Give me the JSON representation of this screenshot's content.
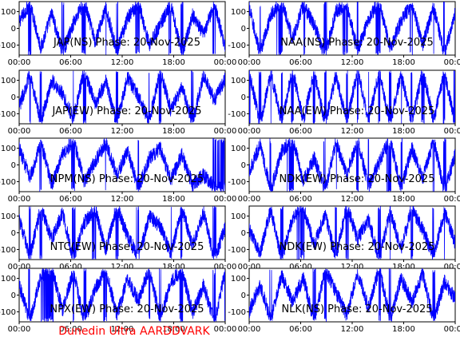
{
  "chart_data": [
    {
      "type": "line",
      "title": "JAP(NS) Phase: 20-Nov-2025",
      "x_ticks": [
        "00:00",
        "06:00",
        "12:00",
        "18:00",
        "00:00"
      ],
      "y_ticks": [
        100,
        0,
        -100
      ],
      "ylim": [
        -160,
        160
      ],
      "series_color": "#0000ff",
      "y_values": [
        40,
        150,
        -120,
        90,
        -150,
        30,
        160,
        -80,
        120,
        -140,
        60,
        155,
        -100,
        20,
        140,
        -160,
        80,
        -40,
        150,
        -120
      ]
    },
    {
      "type": "line",
      "title": "NAA(NS) Phase: 20-Nov-2025",
      "x_ticks": [
        "00:00",
        "06:00",
        "12:00",
        "18:00",
        "00:00"
      ],
      "y_ticks": [
        100,
        0,
        -100
      ],
      "ylim": [
        -160,
        160
      ],
      "series_color": "#0000ff",
      "y_values": [
        120,
        -150,
        80,
        160,
        -60,
        140,
        20,
        -160,
        100,
        150,
        -140,
        60,
        160,
        -120,
        40,
        150,
        -100,
        130,
        -150,
        90
      ]
    },
    {
      "type": "line",
      "title": "JAP(EW) Phase: 20-Nov-2025",
      "x_ticks": [
        "00:00",
        "06:00",
        "12:00",
        "18:00",
        "00:00"
      ],
      "y_ticks": [
        100,
        0,
        -100
      ],
      "ylim": [
        -160,
        160
      ],
      "series_color": "#0000ff",
      "y_values": [
        -60,
        140,
        -150,
        100,
        20,
        -130,
        160,
        -40,
        90,
        -160,
        120,
        0,
        -140,
        150,
        -80,
        60,
        -150,
        130,
        -20,
        110
      ]
    },
    {
      "type": "line",
      "title": "NAA(EW) Phase: 20-Nov-2025",
      "x_ticks": [
        "00:00",
        "06:00",
        "12:00",
        "18:00",
        "00:00"
      ],
      "y_ticks": [
        100,
        0,
        -100
      ],
      "ylim": [
        -160,
        160
      ],
      "series_color": "#0000ff",
      "y_values": [
        150,
        -160,
        140,
        -150,
        160,
        -140,
        150,
        -160,
        130,
        -150,
        160,
        -140,
        150,
        -160,
        140,
        -150,
        160,
        -140,
        150,
        -160
      ]
    },
    {
      "type": "line",
      "title": "NPM(NS) Phase: 20-Nov-2025",
      "x_ticks": [
        "00:00",
        "06:00",
        "12:00",
        "18:00",
        "00:00"
      ],
      "y_ticks": [
        100,
        0,
        -100
      ],
      "ylim": [
        -160,
        160
      ],
      "series_color": "#0000ff",
      "y_values": [
        100,
        -80,
        140,
        -120,
        60,
        150,
        -100,
        20,
        130,
        -60,
        80,
        -140,
        40,
        100,
        -90,
        60,
        -120,
        -60,
        -130,
        -150
      ]
    },
    {
      "type": "line",
      "title": "NDK(EW) Phase: 20-Nov-2025",
      "x_ticks": [
        "00:00",
        "06:00",
        "12:00",
        "18:00",
        "00:00"
      ],
      "y_ticks": [
        100,
        0,
        -100
      ],
      "ylim": [
        -160,
        160
      ],
      "series_color": "#0000ff",
      "y_values": [
        -40,
        120,
        -150,
        80,
        160,
        -100,
        40,
        -160,
        140,
        -60,
        150,
        -130,
        20,
        160,
        -150,
        100,
        -80,
        150,
        -160,
        60
      ]
    },
    {
      "type": "line",
      "title": "NTC(EW) Phase: 20-Nov-2025",
      "x_ticks": [
        "00:00",
        "06:00",
        "12:00",
        "18:00",
        "00:00"
      ],
      "y_ticks": [
        100,
        0,
        -100
      ],
      "ylim": [
        -160,
        160
      ],
      "series_color": "#0000ff",
      "y_values": [
        80,
        -140,
        150,
        -40,
        120,
        -160,
        60,
        140,
        -100,
        160,
        -20,
        -150,
        100,
        40,
        -130,
        150,
        -80,
        120,
        -160,
        30
      ]
    },
    {
      "type": "line",
      "title": "NDK(EW) Phase: 20-Nov-2025",
      "x_ticks": [
        "00:00",
        "06:00",
        "12:00",
        "18:00",
        "00:00"
      ],
      "y_ticks": [
        100,
        0,
        -100
      ],
      "ylim": [
        -160,
        160
      ],
      "series_color": "#0000ff",
      "y_values": [
        20,
        -120,
        140,
        -160,
        90,
        150,
        -70,
        110,
        -150,
        160,
        -40,
        80,
        -160,
        130,
        -100,
        150,
        20,
        -140,
        120,
        -60
      ]
    },
    {
      "type": "line",
      "title": "NPX(EW) Phase: 20-Nov-2025",
      "x_ticks": [
        "00:00",
        "06:00",
        "12:00",
        "18:00",
        "00:00"
      ],
      "y_ticks": [
        100,
        0,
        -100
      ],
      "ylim": [
        -160,
        160
      ],
      "series_color": "#0000ff",
      "y_values": [
        60,
        -150,
        120,
        160,
        -90,
        140,
        -160,
        40,
        150,
        -120,
        100,
        -40,
        160,
        -140,
        80,
        150,
        -110,
        60,
        -160,
        140
      ]
    },
    {
      "type": "line",
      "title": "NLK(NS) Phase: 20-Nov-2025",
      "x_ticks": [
        "00:00",
        "06:00",
        "12:00",
        "18:00",
        "00:00"
      ],
      "y_ticks": [
        100,
        0,
        -100
      ],
      "ylim": [
        -160,
        160
      ],
      "series_color": "#0000ff",
      "y_values": [
        -100,
        60,
        -150,
        120,
        -40,
        100,
        -160,
        150,
        20,
        -120,
        140,
        -80,
        160,
        -150,
        100,
        -40,
        130,
        -160,
        80,
        -20
      ]
    }
  ],
  "footer": "Dunedin Ultra AARDDVARK",
  "footer_color": "#ff0000"
}
